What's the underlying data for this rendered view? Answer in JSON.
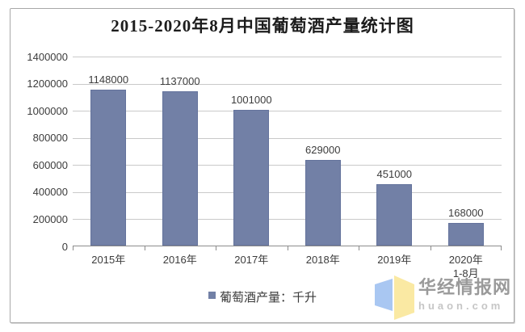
{
  "chart_data": {
    "type": "bar",
    "title": "2015-2020年8月中国葡萄酒产量统计图",
    "categories": [
      "2015年",
      "2016年",
      "2017年",
      "2018年",
      "2019年",
      "2020年\n1-8月"
    ],
    "values": [
      1148000,
      1137000,
      1001000,
      629000,
      451000,
      168000
    ],
    "data_labels": [
      "1148000",
      "1137000",
      "1001000",
      "629000",
      "451000",
      "168000"
    ],
    "ylim": [
      0,
      1400000
    ],
    "ytick_step": 200000,
    "ytick_labels": [
      "1400000",
      "1200000",
      "1000000",
      "800000",
      "600000",
      "400000",
      "200000",
      "0"
    ],
    "grid": true,
    "legend": {
      "label": "葡萄酒产量：千升",
      "position": "bottom"
    },
    "bar_color": "#7280a6",
    "bar_border_color": "#64739c"
  },
  "watermark": {
    "site_name": "华经情报网",
    "site_domain": "huaon.com",
    "logo_blue": "#a9c7f2",
    "logo_yellow": "#fae9a3"
  },
  "colors": {
    "grid": "#c9c9c9",
    "axis": "#8c8c8c",
    "text": "#3c3c3c",
    "frame_border": "#a8a8a8"
  }
}
